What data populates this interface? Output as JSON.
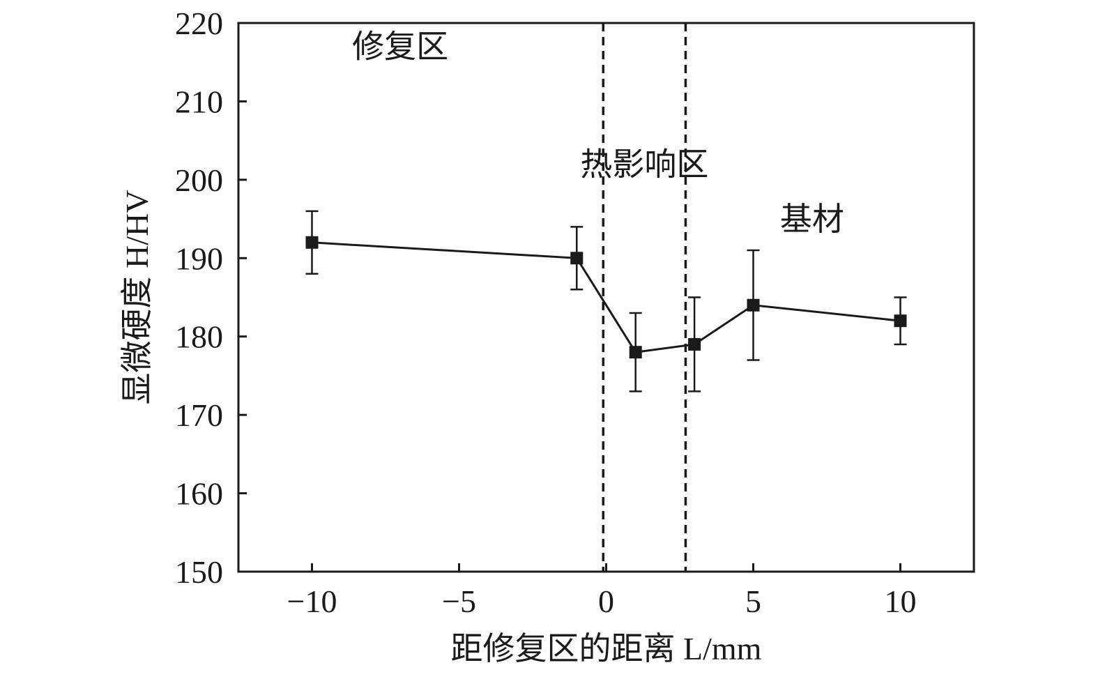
{
  "chart_data": {
    "type": "line",
    "xlabel": "距修复区的距离 L/mm",
    "ylabel": "显微硬度 H/HV",
    "xlim": [
      -12.5,
      12.5
    ],
    "ylim": [
      150,
      220
    ],
    "x_ticks": [
      -10,
      -5,
      0,
      5,
      10
    ],
    "x_tick_labels": [
      "−10",
      "−5",
      "0",
      "5",
      "10"
    ],
    "y_ticks": [
      150,
      160,
      170,
      180,
      190,
      200,
      210,
      220
    ],
    "y_tick_labels": [
      "150",
      "160",
      "170",
      "180",
      "190",
      "200",
      "210",
      "220"
    ],
    "series": [
      {
        "x": [
          -10,
          -1,
          1,
          3,
          5,
          10
        ],
        "y": [
          192,
          190,
          178,
          179,
          184,
          182
        ],
        "y_err_low": [
          188,
          186,
          173,
          173,
          177,
          179
        ],
        "y_err_high": [
          196,
          194,
          183,
          185,
          191,
          185
        ],
        "marker": "square",
        "color": "#1a1a1a"
      }
    ],
    "boundaries": [
      {
        "x": -0.1,
        "style": "dashed"
      },
      {
        "x": 2.7,
        "style": "dashed"
      }
    ],
    "regions": [
      {
        "label": "修复区",
        "x": -7.0,
        "y": 217
      },
      {
        "label": "热影响区",
        "x": 1.3,
        "y": 202
      },
      {
        "label": "基材",
        "x": 7.0,
        "y": 195
      }
    ],
    "grid": false,
    "legend": "none"
  }
}
